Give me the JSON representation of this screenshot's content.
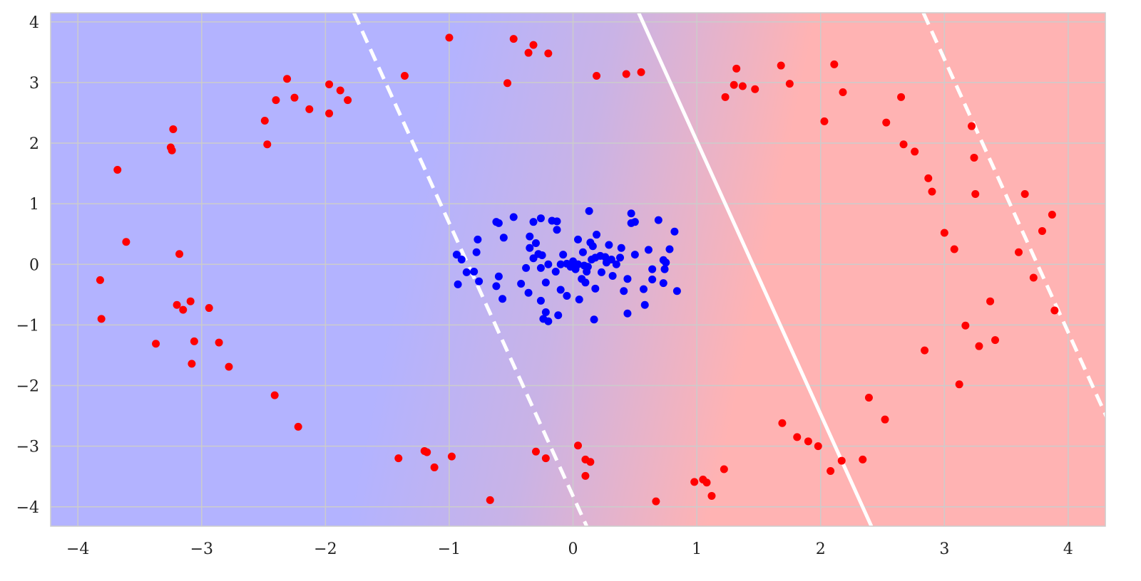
{
  "chart_data": {
    "type": "scatter",
    "title": "",
    "xlabel": "",
    "ylabel": "",
    "xlim": [
      -4.22,
      4.3
    ],
    "ylim": [
      -4.32,
      4.15
    ],
    "x_ticks": [
      -4,
      -3,
      -2,
      -1,
      0,
      1,
      2,
      3,
      4
    ],
    "x_tick_labels": [
      "−4",
      "−3",
      "−2",
      "−1",
      "0",
      "1",
      "2",
      "3",
      "4"
    ],
    "y_ticks": [
      4,
      3,
      2,
      1,
      0,
      -1,
      -2,
      -3,
      -4
    ],
    "y_tick_labels": [
      "4",
      "3",
      "2",
      "1",
      "0",
      "−1",
      "−2",
      "−3",
      "−4"
    ],
    "grid": true,
    "colors": {
      "class_blue": "#0000ff",
      "class_red": "#ff0000",
      "region_blue": "#b3b3ff",
      "region_red": "#ffb3b3",
      "boundary": "#ffffff",
      "grid": "#cccccc"
    },
    "decision_boundary": {
      "top": [
        0.53,
        4.15
      ],
      "bottom": [
        2.41,
        -4.32
      ]
    },
    "margin_lines": [
      {
        "top": [
          -1.77,
          4.15
        ],
        "bottom": [
          0.11,
          -4.32
        ]
      },
      {
        "top": [
          2.83,
          4.15
        ],
        "bottom": [
          4.71,
          -4.32
        ]
      }
    ],
    "series": [
      {
        "color": "#0000ff",
        "points": [
          [
            -0.94,
            0.16
          ],
          [
            -0.9,
            0.08
          ],
          [
            -0.86,
            -0.13
          ],
          [
            -0.8,
            -0.12
          ],
          [
            -0.78,
            0.2
          ],
          [
            -0.77,
            0.41
          ],
          [
            -0.76,
            -0.28
          ],
          [
            -0.93,
            -0.33
          ],
          [
            -0.62,
            0.7
          ],
          [
            -0.6,
            0.68
          ],
          [
            -0.56,
            0.44
          ],
          [
            -0.48,
            0.78
          ],
          [
            -0.35,
            0.46
          ],
          [
            -0.32,
            0.7
          ],
          [
            -0.26,
            0.76
          ],
          [
            -0.62,
            -0.36
          ],
          [
            -0.6,
            -0.2
          ],
          [
            -0.57,
            -0.57
          ],
          [
            -0.42,
            -0.32
          ],
          [
            -0.38,
            -0.06
          ],
          [
            -0.36,
            -0.47
          ],
          [
            -0.35,
            0.27
          ],
          [
            -0.32,
            0.1
          ],
          [
            -0.3,
            0.35
          ],
          [
            -0.28,
            0.17
          ],
          [
            -0.25,
            0.15
          ],
          [
            -0.26,
            -0.06
          ],
          [
            -0.26,
            -0.6
          ],
          [
            -0.24,
            -0.9
          ],
          [
            -0.22,
            -0.79
          ],
          [
            -0.2,
            -0.94
          ],
          [
            -0.22,
            -0.3
          ],
          [
            -0.2,
            0.0
          ],
          [
            -0.17,
            0.72
          ],
          [
            -0.13,
            0.71
          ],
          [
            -0.13,
            0.57
          ],
          [
            -0.14,
            -0.12
          ],
          [
            -0.12,
            -0.84
          ],
          [
            -0.1,
            -0.42
          ],
          [
            -0.1,
            0.0
          ],
          [
            -0.08,
            0.16
          ],
          [
            -0.05,
            -0.52
          ],
          [
            -0.05,
            0.01
          ],
          [
            -0.02,
            -0.04
          ],
          [
            0.0,
            0.05
          ],
          [
            0.02,
            0.0
          ],
          [
            0.02,
            -0.08
          ],
          [
            0.04,
            0.0
          ],
          [
            0.04,
            0.41
          ],
          [
            0.05,
            -0.58
          ],
          [
            0.07,
            -0.24
          ],
          [
            0.08,
            0.2
          ],
          [
            0.09,
            -0.02
          ],
          [
            0.1,
            -0.3
          ],
          [
            0.11,
            -0.12
          ],
          [
            0.12,
            -0.04
          ],
          [
            0.13,
            0.88
          ],
          [
            0.14,
            0.36
          ],
          [
            0.15,
            0.08
          ],
          [
            0.16,
            0.3
          ],
          [
            0.17,
            -0.91
          ],
          [
            0.18,
            -0.4
          ],
          [
            0.18,
            0.11
          ],
          [
            0.19,
            0.49
          ],
          [
            0.22,
            0.14
          ],
          [
            0.23,
            -0.13
          ],
          [
            0.26,
            0.12
          ],
          [
            0.27,
            0.03
          ],
          [
            0.29,
            0.32
          ],
          [
            0.31,
            0.08
          ],
          [
            0.32,
            -0.19
          ],
          [
            0.35,
            0.0
          ],
          [
            0.38,
            0.11
          ],
          [
            0.39,
            0.27
          ],
          [
            0.41,
            -0.44
          ],
          [
            0.44,
            -0.24
          ],
          [
            0.44,
            -0.81
          ],
          [
            0.47,
            0.84
          ],
          [
            0.47,
            0.68
          ],
          [
            0.5,
            0.7
          ],
          [
            0.5,
            0.16
          ],
          [
            0.57,
            -0.41
          ],
          [
            0.58,
            -0.67
          ],
          [
            0.61,
            0.24
          ],
          [
            0.64,
            -0.08
          ],
          [
            0.64,
            -0.25
          ],
          [
            0.69,
            0.73
          ],
          [
            0.73,
            -0.31
          ],
          [
            0.73,
            0.07
          ],
          [
            0.74,
            -0.08
          ],
          [
            0.75,
            0.03
          ],
          [
            0.78,
            0.25
          ],
          [
            0.82,
            0.54
          ],
          [
            0.84,
            -0.44
          ]
        ]
      },
      {
        "color": "#ff0000",
        "points": [
          [
            -3.82,
            -0.26
          ],
          [
            -3.81,
            -0.9
          ],
          [
            -3.68,
            1.56
          ],
          [
            -3.61,
            0.37
          ],
          [
            -3.37,
            -1.31
          ],
          [
            -3.25,
            1.93
          ],
          [
            -3.24,
            1.88
          ],
          [
            -3.23,
            2.23
          ],
          [
            -3.2,
            -0.67
          ],
          [
            -3.18,
            0.17
          ],
          [
            -3.15,
            -0.75
          ],
          [
            -3.09,
            -0.61
          ],
          [
            -3.08,
            -1.64
          ],
          [
            -3.06,
            -1.27
          ],
          [
            -2.94,
            -0.72
          ],
          [
            -2.86,
            -1.29
          ],
          [
            -2.78,
            -1.69
          ],
          [
            -2.49,
            2.37
          ],
          [
            -2.47,
            1.98
          ],
          [
            -2.4,
            2.71
          ],
          [
            -2.41,
            -2.16
          ],
          [
            -2.31,
            3.06
          ],
          [
            -2.25,
            2.75
          ],
          [
            -2.22,
            -2.68
          ],
          [
            -2.13,
            2.56
          ],
          [
            -1.97,
            2.97
          ],
          [
            -1.97,
            2.49
          ],
          [
            -1.88,
            2.87
          ],
          [
            -1.82,
            2.71
          ],
          [
            -1.36,
            3.11
          ],
          [
            -1.41,
            -3.2
          ],
          [
            -1.2,
            -3.08
          ],
          [
            -1.18,
            -3.1
          ],
          [
            -1.12,
            -3.35
          ],
          [
            -1.0,
            3.74
          ],
          [
            -0.98,
            -3.17
          ],
          [
            -0.48,
            3.72
          ],
          [
            -0.53,
            2.99
          ],
          [
            -0.36,
            3.49
          ],
          [
            -0.32,
            3.62
          ],
          [
            -0.3,
            -3.09
          ],
          [
            -0.2,
            3.48
          ],
          [
            -0.22,
            -3.2
          ],
          [
            -0.67,
            -3.89
          ],
          [
            0.19,
            3.11
          ],
          [
            0.04,
            -2.99
          ],
          [
            0.1,
            -3.22
          ],
          [
            0.14,
            -3.26
          ],
          [
            0.1,
            -3.49
          ],
          [
            0.43,
            3.14
          ],
          [
            0.55,
            3.17
          ],
          [
            0.67,
            -3.91
          ],
          [
            0.98,
            -3.59
          ],
          [
            1.05,
            -3.55
          ],
          [
            1.08,
            -3.6
          ],
          [
            1.12,
            -3.82
          ],
          [
            1.22,
            -3.38
          ],
          [
            1.23,
            2.76
          ],
          [
            1.3,
            2.96
          ],
          [
            1.32,
            3.23
          ],
          [
            1.37,
            2.94
          ],
          [
            1.47,
            2.89
          ],
          [
            1.68,
            3.28
          ],
          [
            1.75,
            2.98
          ],
          [
            1.69,
            -2.62
          ],
          [
            1.81,
            -2.85
          ],
          [
            1.9,
            -2.92
          ],
          [
            1.98,
            -3.0
          ],
          [
            2.03,
            2.36
          ],
          [
            2.08,
            -3.41
          ],
          [
            2.11,
            3.3
          ],
          [
            2.17,
            -3.24
          ],
          [
            2.18,
            2.84
          ],
          [
            2.34,
            -3.22
          ],
          [
            2.39,
            -2.2
          ],
          [
            2.52,
            -2.56
          ],
          [
            2.53,
            2.34
          ],
          [
            2.65,
            2.76
          ],
          [
            2.67,
            1.98
          ],
          [
            2.76,
            1.86
          ],
          [
            2.84,
            -1.42
          ],
          [
            2.87,
            1.42
          ],
          [
            2.9,
            1.2
          ],
          [
            3.0,
            0.52
          ],
          [
            3.08,
            0.25
          ],
          [
            3.12,
            -1.98
          ],
          [
            3.17,
            -1.01
          ],
          [
            3.22,
            2.28
          ],
          [
            3.24,
            1.76
          ],
          [
            3.25,
            1.16
          ],
          [
            3.28,
            -1.35
          ],
          [
            3.37,
            -0.61
          ],
          [
            3.41,
            -1.25
          ],
          [
            3.6,
            0.2
          ],
          [
            3.65,
            1.16
          ],
          [
            3.72,
            -0.22
          ],
          [
            3.79,
            0.55
          ],
          [
            3.87,
            0.82
          ],
          [
            3.89,
            -0.76
          ]
        ]
      }
    ]
  }
}
